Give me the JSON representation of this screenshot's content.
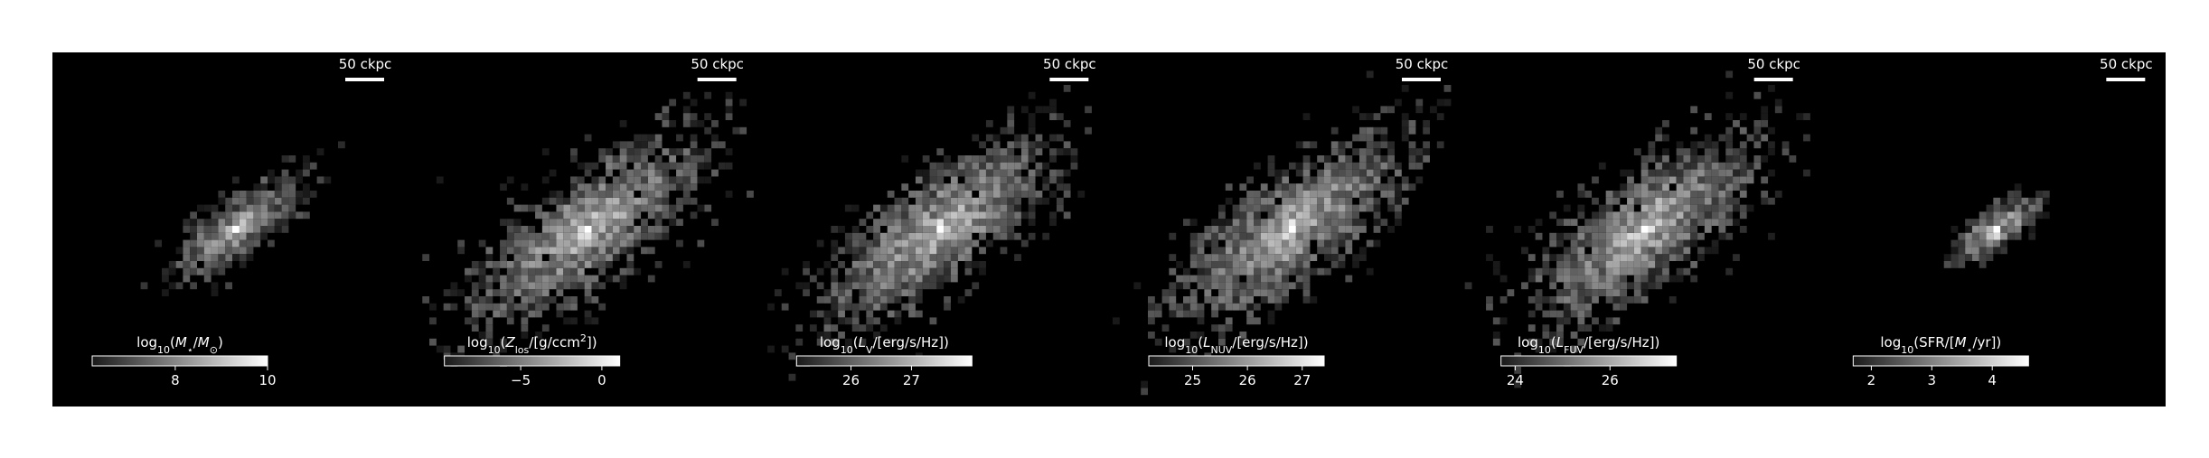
{
  "panels": [
    {
      "scale_label": "50 ckpc",
      "colorbar": {
        "label": [
          {
            "t": "log"
          },
          {
            "sub": "10"
          },
          {
            "t": "("
          },
          {
            "i": "M"
          },
          {
            "sub": "⋆"
          },
          {
            "t": "/"
          },
          {
            "i": "M"
          },
          {
            "sub": "⊙"
          },
          {
            "t": ")"
          }
        ],
        "vlim": [
          6.2,
          10
        ],
        "ticks": [
          8,
          10
        ]
      },
      "spread": 1
    },
    {
      "scale_label": "50 ckpc",
      "colorbar": {
        "label": [
          {
            "t": "log"
          },
          {
            "sub": "10"
          },
          {
            "t": "("
          },
          {
            "i": "Z"
          },
          {
            "sub": "los"
          },
          {
            "t": "/[g/ccm"
          },
          {
            "sup": "2"
          },
          {
            "t": "])"
          }
        ],
        "vlim": [
          -9.7,
          1.1
        ],
        "ticks": [
          {
            "value": -5,
            "label": "−5"
          },
          0
        ]
      },
      "spread": 2
    },
    {
      "scale_label": "50 ckpc",
      "colorbar": {
        "label": [
          {
            "t": "log"
          },
          {
            "sub": "10"
          },
          {
            "t": "("
          },
          {
            "i": "L"
          },
          {
            "sub": "V"
          },
          {
            "t": "/[erg/s/Hz])"
          }
        ],
        "vlim": [
          25.1,
          28.0
        ],
        "ticks": [
          26,
          27
        ]
      },
      "spread": 2
    },
    {
      "scale_label": "50 ckpc",
      "colorbar": {
        "label": [
          {
            "t": "log"
          },
          {
            "sub": "10"
          },
          {
            "t": "("
          },
          {
            "i": "L"
          },
          {
            "sub": "NUV"
          },
          {
            "t": "/[erg/s/Hz])"
          }
        ],
        "vlim": [
          24.2,
          27.4
        ],
        "ticks": [
          25,
          26,
          27
        ]
      },
      "spread": 2
    },
    {
      "scale_label": "50 ckpc",
      "colorbar": {
        "label": [
          {
            "t": "log"
          },
          {
            "sub": "10"
          },
          {
            "t": "("
          },
          {
            "i": "L"
          },
          {
            "sub": "FUV"
          },
          {
            "t": "/[erg/s/Hz])"
          }
        ],
        "vlim": [
          23.7,
          27.4
        ],
        "ticks": [
          24,
          26
        ]
      },
      "spread": 2
    },
    {
      "scale_label": "50 ckpc",
      "colorbar": {
        "label": [
          {
            "t": "log"
          },
          {
            "sub": "10"
          },
          {
            "t": "(SFR/["
          },
          {
            "i": "M"
          },
          {
            "sub": "⋆"
          },
          {
            "t": "/yr])"
          }
        ],
        "vlim": [
          1.7,
          4.6
        ],
        "ticks": [
          2,
          3,
          4
        ]
      },
      "spread": 0.7
    }
  ]
}
